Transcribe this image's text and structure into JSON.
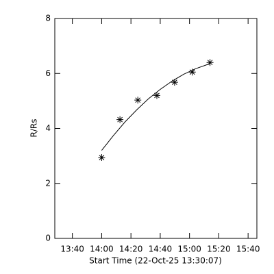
{
  "chart_data": {
    "type": "scatter",
    "xlabel": "Start Time (22-Oct-25 13:30:07)",
    "ylabel": "R/Rs",
    "xlim": [
      808,
      946
    ],
    "ylim": [
      0,
      8
    ],
    "xticks": [
      {
        "value": 820,
        "label": "13:40"
      },
      {
        "value": 840,
        "label": "14:00"
      },
      {
        "value": 860,
        "label": "14:20"
      },
      {
        "value": 880,
        "label": "14:40"
      },
      {
        "value": 900,
        "label": "15:00"
      },
      {
        "value": 920,
        "label": "15:20"
      },
      {
        "value": 940,
        "label": "15:40"
      }
    ],
    "yticks": [
      0,
      2,
      4,
      6,
      8
    ],
    "color": "#000000",
    "series": [
      {
        "type": "scatter",
        "x": [
          840,
          852.5,
          864.7,
          877.7,
          889.8,
          901.9,
          914
        ],
        "values": [
          2.94,
          4.32,
          5.03,
          5.2,
          5.68,
          6.05,
          6.4
        ]
      },
      {
        "type": "line",
        "x": [
          840,
          848,
          856,
          864,
          872,
          880,
          888,
          896,
          904,
          912,
          914
        ],
        "values": [
          3.2,
          3.74,
          4.24,
          4.68,
          5.08,
          5.42,
          5.72,
          5.97,
          6.17,
          6.32,
          6.35
        ]
      }
    ]
  }
}
